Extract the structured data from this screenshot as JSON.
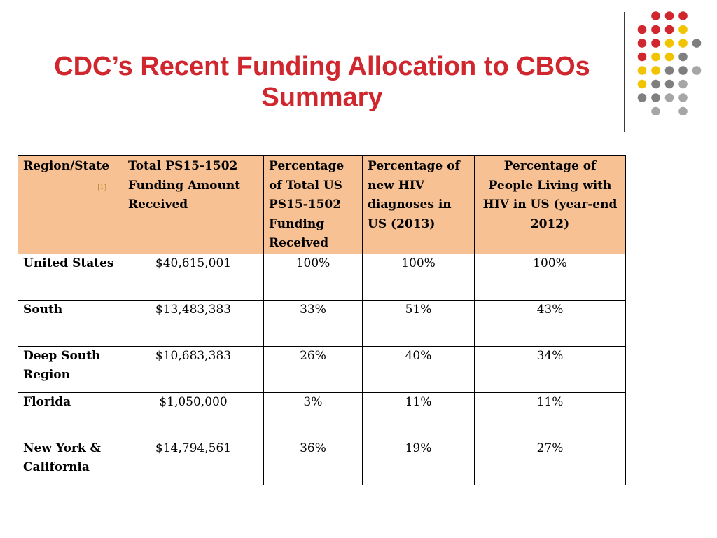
{
  "title": {
    "line1": "CDC’s Recent Funding Allocation to CBOs",
    "line2": "Summary"
  },
  "decoration": {
    "dot_colors": [
      "#d0262e",
      "#f0c400",
      "#7f7f7f",
      "#a6a6a6"
    ]
  },
  "table": {
    "headers": [
      "Region/State",
      "Total PS15-1502 Funding Amount Received",
      "Percentage of Total US PS15-1502 Funding Received",
      "Percentage of new HIV diagnoses in US (2013)",
      "Percentage of People Living with HIV in US (year-end 2012)"
    ],
    "header_footnote": "[1]",
    "rows": [
      [
        "United States",
        "$40,615,001",
        "100%",
        "100%",
        "100%"
      ],
      [
        "South",
        "$13,483,383",
        "33%",
        "51%",
        "43%"
      ],
      [
        "Deep South Region",
        "$10,683,383",
        "26%",
        "40%",
        "34%"
      ],
      [
        "Florida",
        "$1,050,000",
        "3%",
        "11%",
        "11%"
      ],
      [
        "New York & California",
        "$14,794,561",
        "36%",
        "19%",
        "27%"
      ]
    ]
  }
}
